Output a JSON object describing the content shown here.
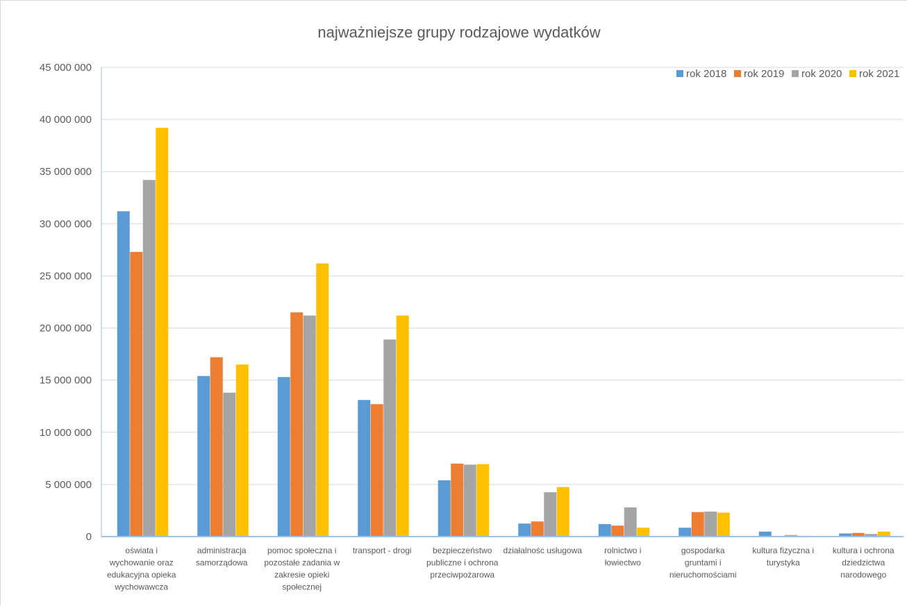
{
  "chart_data": {
    "type": "bar",
    "title": "najważniejsze grupy rodzajowe wydatków",
    "xlabel": "",
    "ylabel": "",
    "ylim": [
      0,
      45000000
    ],
    "y_ticks": [
      0,
      5000000,
      10000000,
      15000000,
      20000000,
      25000000,
      30000000,
      35000000,
      40000000,
      45000000
    ],
    "y_tick_labels": [
      "0",
      "5 000 000",
      "10 000 000",
      "15 000 000",
      "20 000 000",
      "25 000 000",
      "30 000 000",
      "35 000 000",
      "40 000 000",
      "45 000 000"
    ],
    "grid": true,
    "legend_position": "top-right",
    "categories": [
      [
        "oświata i",
        "wychowanie oraz",
        "edukacyjna opieka",
        "wychowawcza"
      ],
      [
        "administracja",
        "samorządowa"
      ],
      [
        "pomoc społeczna i",
        "pozostałe zadania w",
        "zakresie opieki",
        "społecznej"
      ],
      [
        "transport - drogi"
      ],
      [
        "bezpieczeństwo",
        "publiczne i ochrona",
        "przeciwpożarowa"
      ],
      [
        "działalnośc usługowa"
      ],
      [
        "rolnictwo i",
        "łowiectwo"
      ],
      [
        "gospodarka",
        "gruntami i",
        "nieruchomościami"
      ],
      [
        "kultura fizyczna i",
        "turystyka"
      ],
      [
        "kultura i ochrona",
        "dziedzictwa",
        "narodowego"
      ]
    ],
    "series": [
      {
        "name": "rok 2018",
        "color": "#5b9bd5",
        "values": [
          31200000,
          15400000,
          15300000,
          13100000,
          5400000,
          1250000,
          1200000,
          850000,
          480000,
          300000
        ]
      },
      {
        "name": "rok 2019",
        "color": "#ed7d31",
        "values": [
          27300000,
          17200000,
          21500000,
          12700000,
          7000000,
          1450000,
          1050000,
          2350000,
          60000,
          350000
        ]
      },
      {
        "name": "rok 2020",
        "color": "#a5a5a5",
        "values": [
          34200000,
          13800000,
          21200000,
          18900000,
          6900000,
          4250000,
          2800000,
          2400000,
          150000,
          250000
        ]
      },
      {
        "name": "rok 2021",
        "color": "#ffc000",
        "values": [
          39200000,
          16500000,
          26200000,
          21200000,
          6950000,
          4750000,
          850000,
          2300000,
          80000,
          480000
        ]
      }
    ]
  }
}
